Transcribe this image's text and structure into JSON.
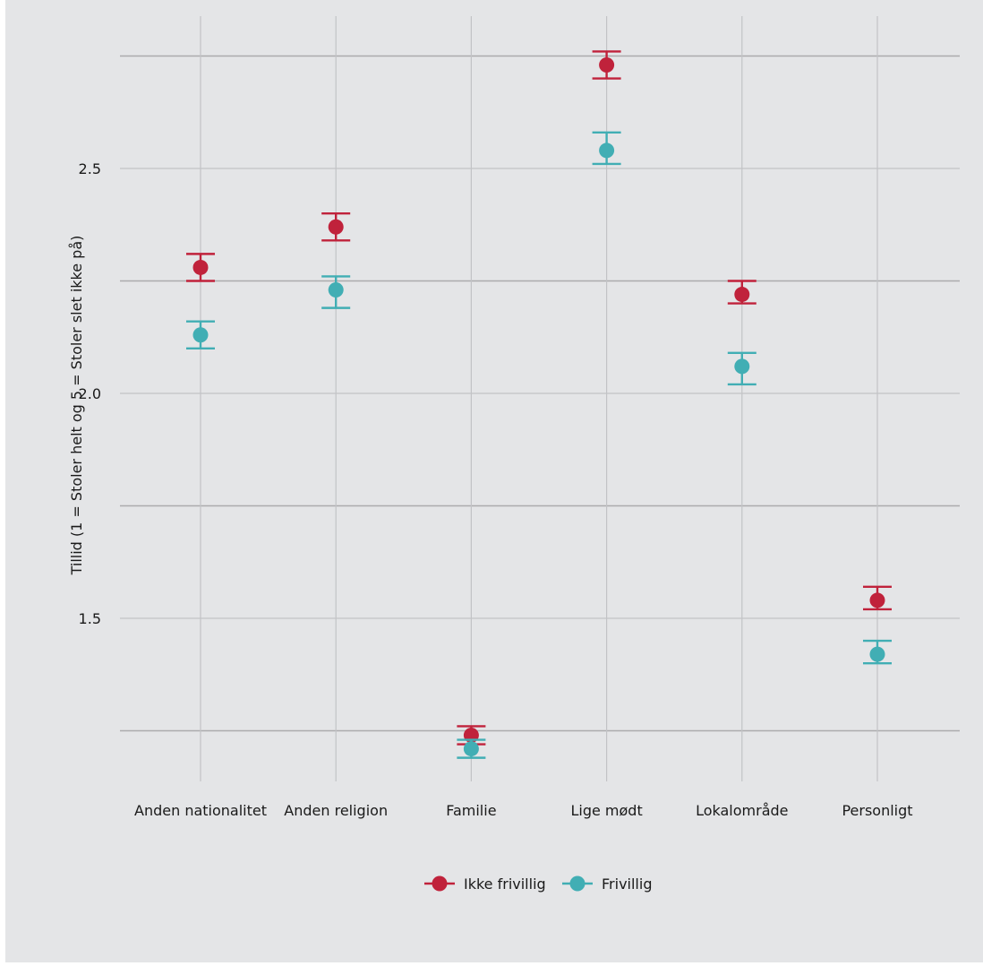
{
  "chart_data": {
    "type": "scatter",
    "title": "",
    "xlabel": "",
    "ylabel": "Tillid (1 = Stoler helt og 5 = Stoler slet ikke på)",
    "categories": [
      "Anden nationalitet",
      "Anden religion",
      "Familie",
      "Lige mødt",
      "Lokalområde",
      "Personligt"
    ],
    "y_ticks": [
      1.5,
      2.0,
      2.5
    ],
    "y_tick_labels": [
      "1.5",
      "2.0",
      "2.5"
    ],
    "ylim": [
      1.14,
      2.83
    ],
    "grid": true,
    "legend_position": "bottom",
    "series": [
      {
        "name": "Ikke frivillig",
        "color": "#c0223b",
        "values": [
          2.28,
          2.37,
          1.24,
          2.73,
          2.22,
          1.54
        ],
        "error_low": [
          2.25,
          2.34,
          1.22,
          2.7,
          2.2,
          1.52
        ],
        "error_high": [
          2.31,
          2.4,
          1.26,
          2.76,
          2.25,
          1.57
        ]
      },
      {
        "name": "Frivillig",
        "color": "#41aeb4",
        "values": [
          2.13,
          2.23,
          1.21,
          2.54,
          2.06,
          1.42
        ],
        "error_low": [
          2.1,
          2.19,
          1.19,
          2.51,
          2.02,
          1.4
        ],
        "error_high": [
          2.16,
          2.26,
          1.23,
          2.58,
          2.09,
          1.45
        ]
      }
    ]
  }
}
